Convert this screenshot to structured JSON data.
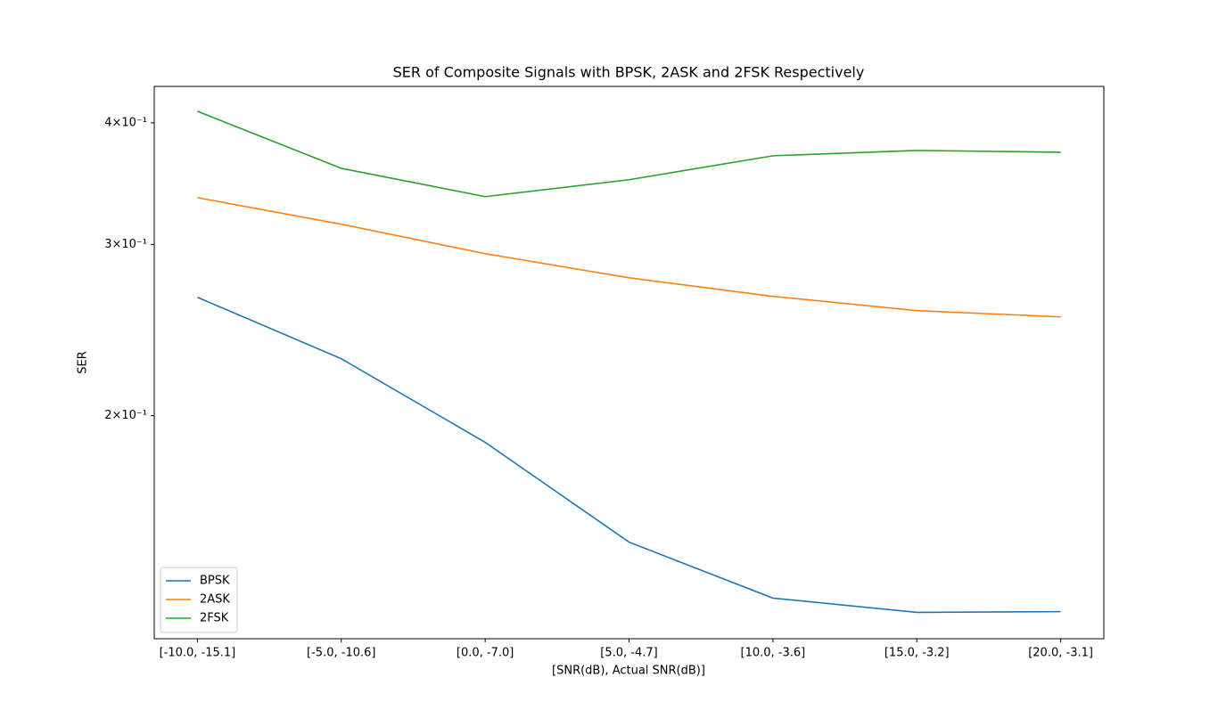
{
  "chart_data": {
    "type": "line",
    "title": "SER of Composite Signals with BPSK, 2ASK and 2FSK Respectively",
    "xlabel": "[SNR(dB), Actual SNR(dB)]",
    "ylabel": "SER",
    "categories": [
      "[-10.0, -15.1]",
      "[-5.0, -10.6]",
      "[0.0, -7.0]",
      "[5.0, -4.7]",
      "[10.0, -3.6]",
      "[15.0, -3.2]",
      "[20.0, -3.1]"
    ],
    "series": [
      {
        "name": "BPSK",
        "color": "#1f77b4",
        "values": [
          0.2647,
          0.2289,
          0.1878,
          0.1483,
          0.1299,
          0.1256,
          0.1258
        ]
      },
      {
        "name": "2ASK",
        "color": "#ff7f0e",
        "values": [
          0.3351,
          0.3147,
          0.2935,
          0.2772,
          0.2653,
          0.2565,
          0.2527
        ]
      },
      {
        "name": "2FSK",
        "color": "#2ca02c",
        "values": [
          0.4111,
          0.3592,
          0.3359,
          0.3496,
          0.37,
          0.3747,
          0.3731
        ]
      }
    ],
    "ylim": [
      0.118,
      0.436
    ],
    "yticks": [
      {
        "value": 0.2,
        "label": "2×10⁻¹"
      },
      {
        "value": 0.3,
        "label": "3×10⁻¹"
      },
      {
        "value": 0.4,
        "label": "4×10⁻¹"
      }
    ],
    "log_y": true,
    "legend": "lower left"
  }
}
